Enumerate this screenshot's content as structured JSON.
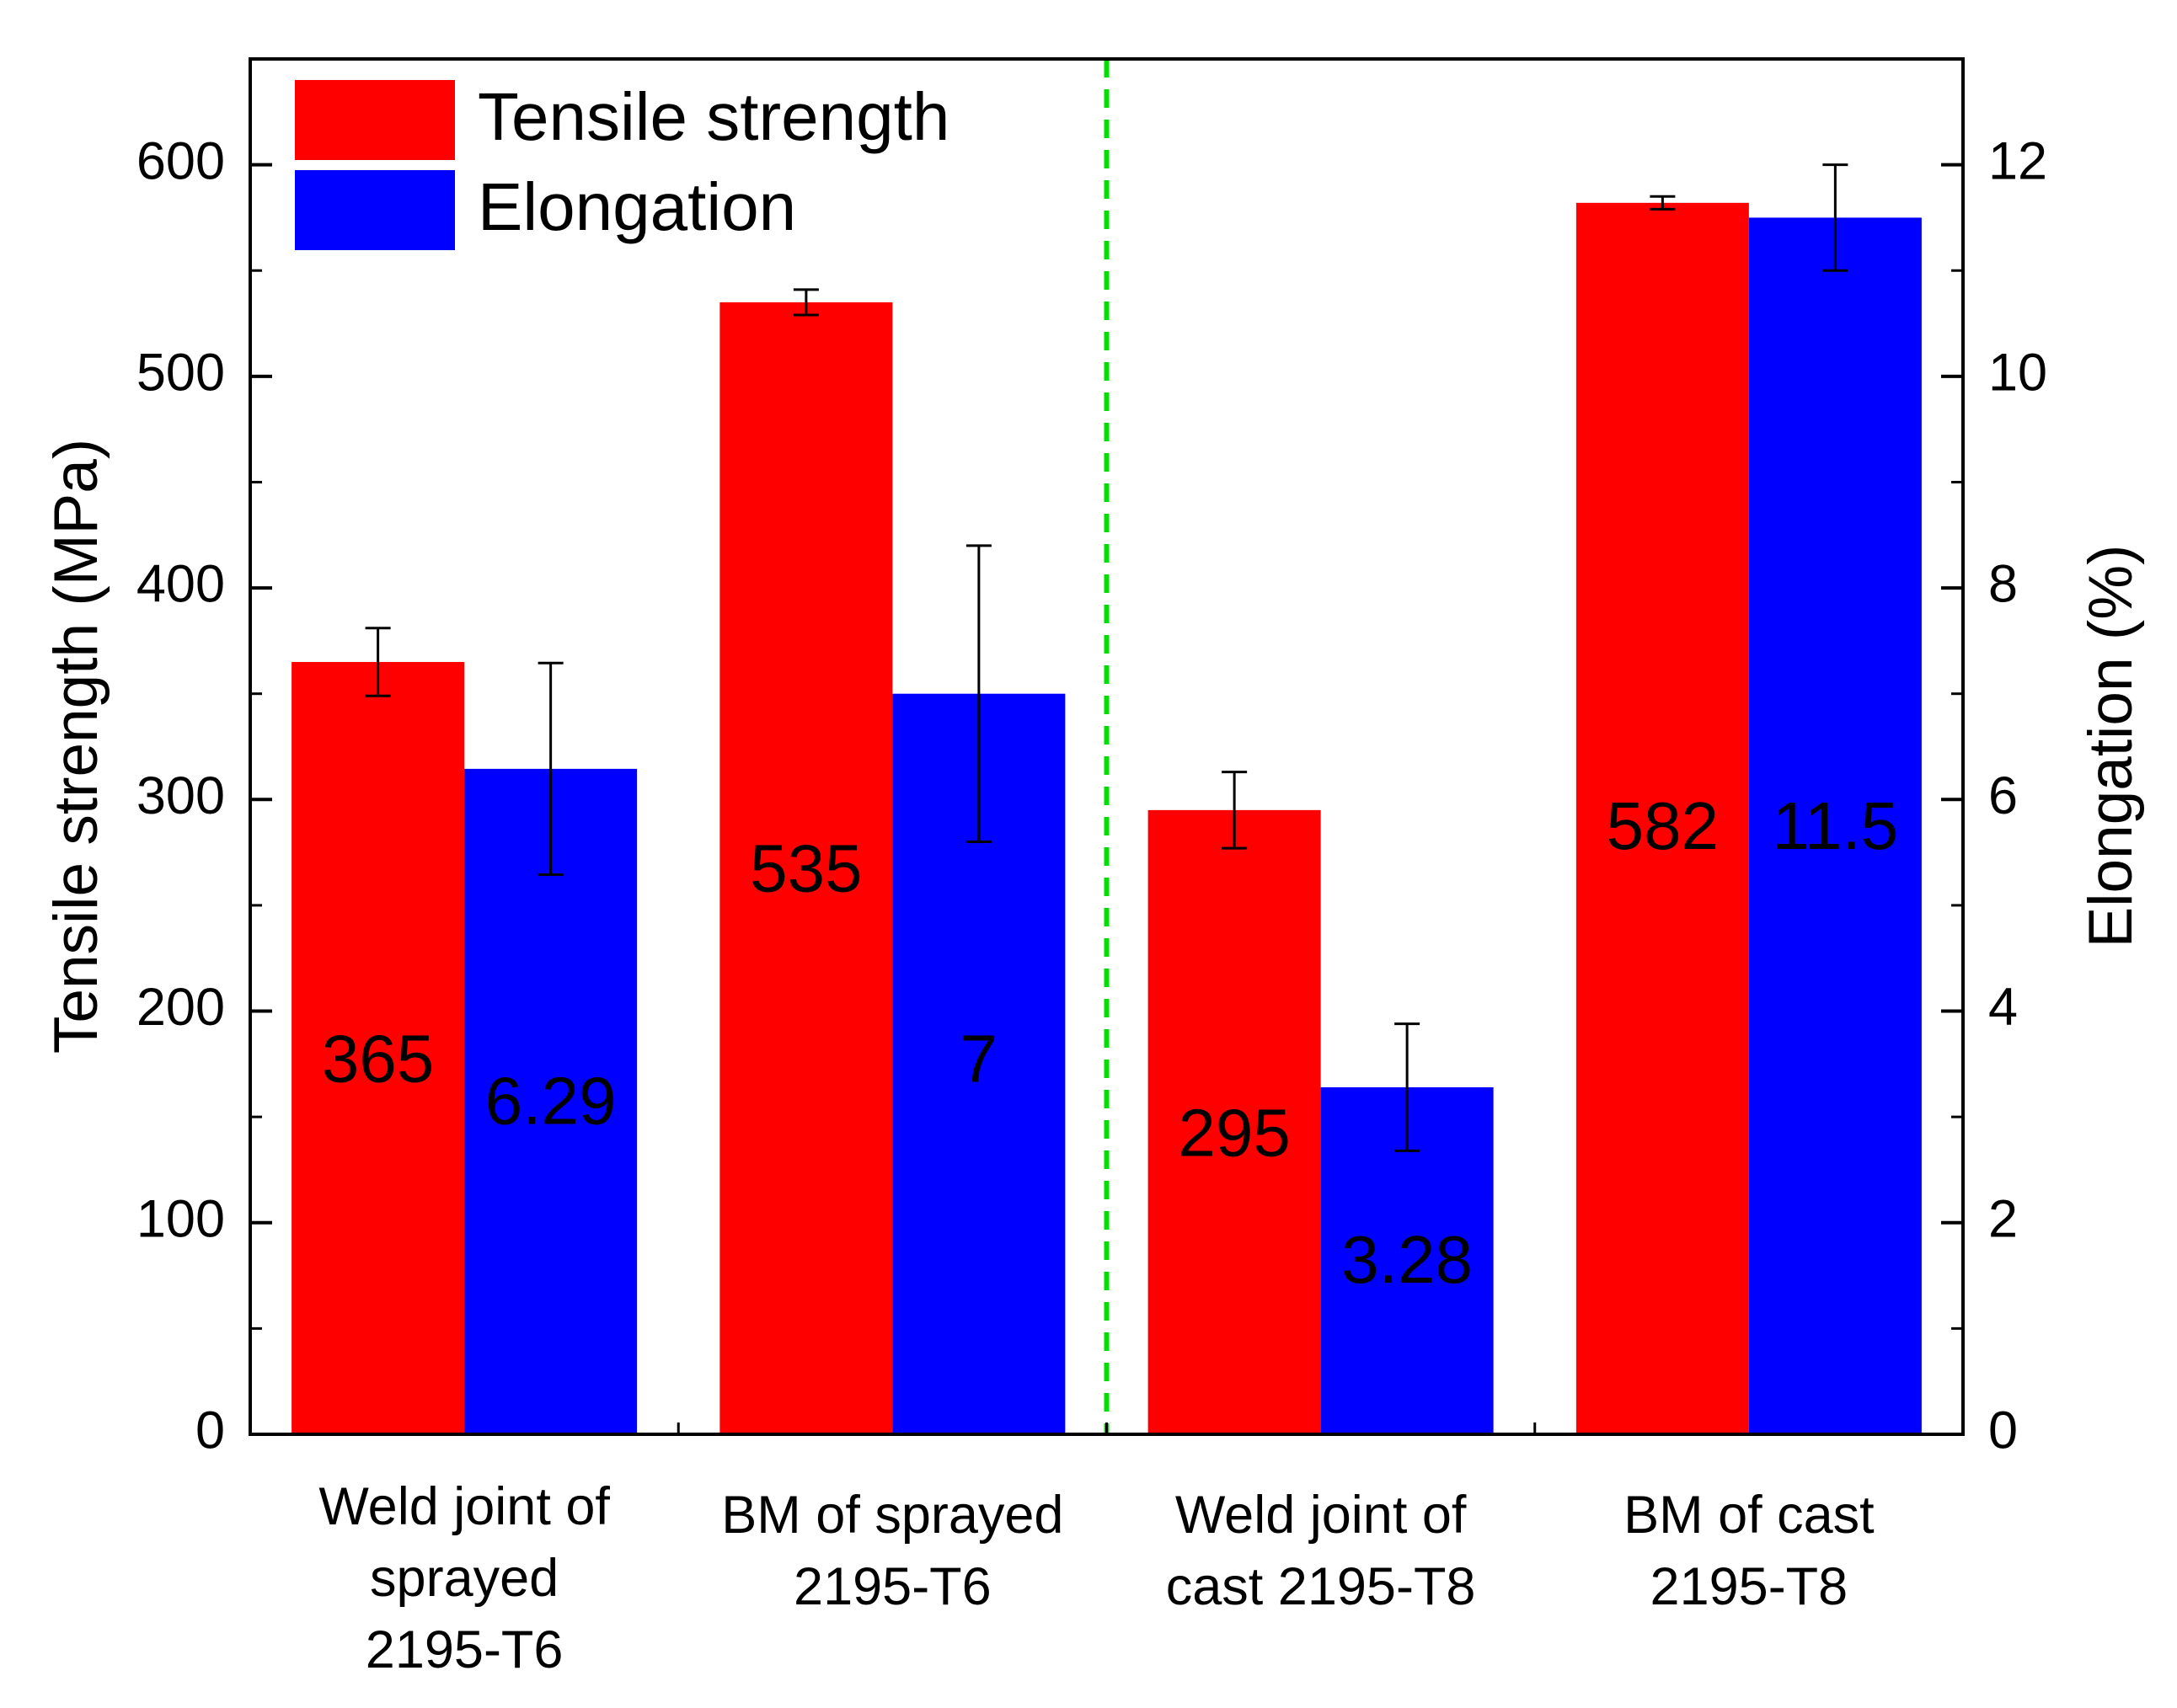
{
  "chart_data": {
    "type": "bar",
    "categories": [
      [
        "Weld joint of",
        "sprayed",
        "2195-T6"
      ],
      [
        "BM of sprayed",
        "2195-T6"
      ],
      [
        "Weld joint of",
        "cast 2195-T8"
      ],
      [
        "BM of cast",
        "2195-T8"
      ]
    ],
    "series": [
      {
        "name": "Tensile strength",
        "axis": "left",
        "color": "#ff0000",
        "values": [
          365,
          535,
          295,
          582
        ],
        "errors": [
          16,
          6,
          18,
          3
        ],
        "labels": [
          "365",
          "535",
          "295",
          "582"
        ]
      },
      {
        "name": "Elongation",
        "axis": "right",
        "color": "#0000ff",
        "values": [
          6.29,
          7,
          3.28,
          11.5
        ],
        "errors": [
          1.0,
          1.4,
          0.6,
          0.5
        ],
        "labels": [
          "6.29",
          "7",
          "3.28",
          "11.5"
        ]
      }
    ],
    "value_label_data_positions": [
      [
        175,
        155
      ],
      [
        265,
        175
      ],
      [
        140,
        80
      ],
      [
        285,
        285
      ]
    ],
    "ylabel": "Tensile strength (MPa)",
    "y2label": "Elongation (%)",
    "ylim": [
      0,
      650
    ],
    "y2lim": [
      0,
      13
    ],
    "yticks": [
      0,
      100,
      200,
      300,
      400,
      500,
      600
    ],
    "y2ticks": [
      0,
      2,
      4,
      6,
      8,
      10,
      12
    ],
    "divider": {
      "style": "dashed",
      "color": "#00e000",
      "after_category_index": 1
    },
    "legend": {
      "placement": "top-left"
    },
    "grid": false
  }
}
